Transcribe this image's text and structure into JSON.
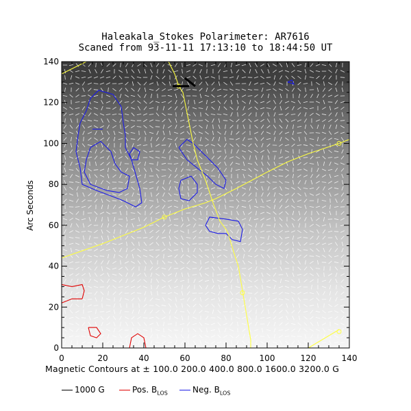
{
  "title_line1": "Haleakala_Stokes Polarimeter: AR7616",
  "title_line2": "Scaned from 93-11-11 17:13:10 to 18:44:50 UT",
  "contour_note": "Magnetic Contours at ±  100.0 200.0 400.0 800.0 1600.0 3200.0 G",
  "legend": {
    "item1": "1000 G",
    "item2_prefix": "Pos. B",
    "item2_sub": "LOS",
    "item3_prefix": "Neg. B",
    "item3_sub": "LOS"
  },
  "colors": {
    "positive": "#e00000",
    "negative": "#1a1ae6",
    "grid_lines": "#ffff40",
    "field_1000": "#000000",
    "vectors": "#ffffff"
  },
  "chart_data": {
    "type": "contour map",
    "title": "Haleakala_Stokes Polarimeter: AR7616",
    "subtitle": "Scaned from 93-11-11 17:13:10 to 18:44:50 UT",
    "xlabel": "Magnetic Contours at ±  100.0 200.0 400.0 800.0 1600.0 3200.0 G",
    "ylabel": "Arc Seconds",
    "xlim": [
      0,
      140
    ],
    "ylim": [
      0,
      140
    ],
    "xticks": [
      0,
      20,
      40,
      60,
      80,
      100,
      120,
      140
    ],
    "yticks": [
      0,
      20,
      40,
      60,
      80,
      100,
      120,
      140
    ],
    "background": "grayscale intensity, dark at top, light at bottom, overlaid with white transverse-field vectors",
    "contour_levels_G": [
      100.0,
      200.0,
      400.0,
      800.0,
      1600.0,
      3200.0
    ],
    "legend_entries": [
      "1000 G",
      "Pos. B_LOS",
      "Neg. B_LOS"
    ],
    "negative_contours": [
      [
        [
          12,
          116
        ],
        [
          14,
          122
        ],
        [
          18,
          126
        ],
        [
          25,
          124
        ],
        [
          29,
          118
        ],
        [
          30,
          110
        ],
        [
          31,
          104
        ],
        [
          31,
          98
        ],
        [
          34,
          92
        ],
        [
          36,
          85
        ],
        [
          38,
          78
        ],
        [
          39,
          71
        ],
        [
          36,
          69
        ],
        [
          30,
          72
        ],
        [
          25,
          74
        ],
        [
          17,
          77
        ],
        [
          10,
          80
        ],
        [
          9,
          88
        ],
        [
          7,
          96
        ],
        [
          8,
          104
        ],
        [
          9,
          110
        ],
        [
          12,
          116
        ]
      ],
      [
        [
          14,
          98
        ],
        [
          19,
          101
        ],
        [
          24,
          96
        ],
        [
          26,
          90
        ],
        [
          29,
          86
        ],
        [
          33,
          84
        ],
        [
          32,
          78
        ],
        [
          28,
          76
        ],
        [
          22,
          77
        ],
        [
          14,
          80
        ],
        [
          11,
          86
        ],
        [
          12,
          92
        ],
        [
          14,
          98
        ]
      ],
      [
        [
          33,
          95
        ],
        [
          35,
          98
        ],
        [
          38,
          96
        ],
        [
          37,
          92
        ],
        [
          34,
          92
        ],
        [
          33,
          95
        ]
      ],
      [
        [
          57,
          98
        ],
        [
          61,
          102
        ],
        [
          64,
          100
        ],
        [
          68,
          96
        ],
        [
          72,
          92
        ],
        [
          76,
          88
        ],
        [
          80,
          82
        ],
        [
          79,
          78
        ],
        [
          75,
          80
        ],
        [
          71,
          84
        ],
        [
          66,
          88
        ],
        [
          61,
          92
        ],
        [
          57,
          98
        ]
      ],
      [
        [
          58,
          82
        ],
        [
          63,
          84
        ],
        [
          66,
          80
        ],
        [
          66,
          76
        ],
        [
          62,
          72
        ],
        [
          58,
          73
        ],
        [
          57,
          78
        ],
        [
          58,
          82
        ]
      ],
      [
        [
          70,
          60
        ],
        [
          72,
          64
        ],
        [
          80,
          63
        ],
        [
          86,
          62
        ],
        [
          88,
          58
        ],
        [
          87,
          52
        ],
        [
          83,
          53
        ],
        [
          80,
          56
        ],
        [
          76,
          56
        ],
        [
          72,
          57
        ],
        [
          70,
          60
        ]
      ],
      [
        [
          15,
          107
        ],
        [
          20,
          107
        ]
      ],
      [
        [
          110,
          130
        ],
        [
          112,
          131
        ],
        [
          113,
          129
        ],
        [
          110,
          130
        ]
      ]
    ],
    "positive_contours": [
      [
        [
          0,
          31
        ],
        [
          5,
          30
        ],
        [
          10,
          31
        ],
        [
          11,
          28
        ],
        [
          10,
          24
        ]
      ],
      [
        [
          0,
          22
        ],
        [
          5,
          24
        ],
        [
          10,
          24
        ]
      ],
      [
        [
          13,
          10
        ],
        [
          17,
          10
        ],
        [
          19,
          7
        ],
        [
          17,
          5
        ],
        [
          14,
          6
        ],
        [
          13,
          10
        ]
      ],
      [
        [
          33,
          0
        ],
        [
          34,
          5
        ],
        [
          37,
          7
        ],
        [
          40,
          5
        ],
        [
          41,
          0
        ]
      ]
    ],
    "overlay_lines": [
      [
        [
          0,
          134
        ],
        [
          4,
          136
        ],
        [
          12,
          140
        ]
      ],
      [
        [
          52,
          140
        ],
        [
          55,
          134
        ],
        [
          57,
          128
        ],
        [
          59,
          125
        ],
        [
          60,
          120
        ],
        [
          62,
          110
        ],
        [
          64,
          100
        ],
        [
          66,
          92
        ],
        [
          70,
          82
        ],
        [
          72,
          76
        ],
        [
          74,
          70
        ],
        [
          77,
          62
        ],
        [
          80,
          58
        ],
        [
          81,
          56
        ],
        [
          84,
          46
        ],
        [
          86,
          40
        ],
        [
          88,
          28
        ],
        [
          89,
          22
        ],
        [
          90,
          16
        ],
        [
          91,
          10
        ],
        [
          92,
          4
        ],
        [
          92,
          0
        ]
      ],
      [
        [
          0,
          44
        ],
        [
          20,
          51
        ],
        [
          40,
          59
        ],
        [
          50,
          64
        ],
        [
          60,
          68
        ],
        [
          70,
          71
        ],
        [
          75,
          73
        ],
        [
          85,
          78
        ],
        [
          100,
          86
        ],
        [
          110,
          91
        ],
        [
          120,
          95
        ],
        [
          135,
          100
        ],
        [
          140,
          102
        ]
      ],
      [
        [
          120,
          0
        ],
        [
          130,
          6
        ],
        [
          135,
          9
        ]
      ]
    ],
    "overlay_markers": [
      [
        57,
        128
      ],
      [
        50,
        64
      ],
      [
        135,
        100
      ],
      [
        88,
        27
      ],
      [
        135,
        8
      ]
    ],
    "field_1000_marks": [
      [
        [
          54,
          128
        ],
        [
          62,
          128
        ]
      ],
      [
        [
          60,
          132
        ],
        [
          65,
          128
        ]
      ]
    ]
  }
}
